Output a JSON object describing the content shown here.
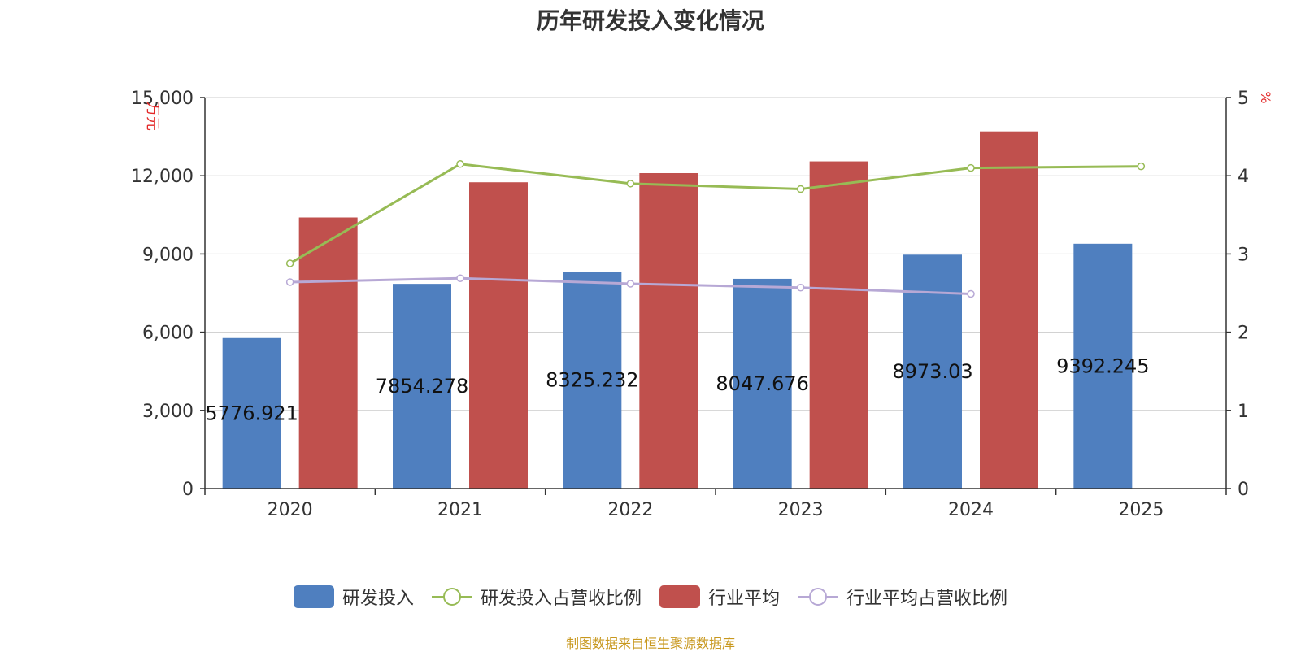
{
  "chart_data": {
    "type": "bar",
    "title": "历年研发投入变化情况",
    "source": "制图数据来自恒生聚源数据库",
    "categories": [
      "2020",
      "2021",
      "2022",
      "2023",
      "2024",
      "2025"
    ],
    "y_left": {
      "unit": "万元",
      "ylim": [
        0,
        15000
      ],
      "ticks": [
        "0",
        "3,000",
        "6,000",
        "9,000",
        "12,000",
        "15,000"
      ]
    },
    "y_right": {
      "unit": "%",
      "ylim": [
        0,
        5
      ],
      "ticks": [
        "0",
        "1",
        "2",
        "3",
        "4",
        "5"
      ]
    },
    "grid": true,
    "legend_position": "bottom",
    "series": [
      {
        "name": "研发投入",
        "type": "bar",
        "axis": "left",
        "color": "#4f7fbf",
        "values": [
          5776.921,
          7854.278,
          8325.232,
          8047.676,
          8973.03,
          9392.245
        ],
        "labels": [
          "5776.921",
          "7854.278",
          "8325.232",
          "8047.676",
          "8973.03",
          "9392.245"
        ]
      },
      {
        "name": "研发投入占营收比例",
        "type": "line",
        "axis": "right",
        "color": "#97bb55",
        "values": [
          2.88,
          4.15,
          3.9,
          3.83,
          4.1,
          4.12
        ]
      },
      {
        "name": "行业平均",
        "type": "bar",
        "axis": "left",
        "color": "#c0504d",
        "values": [
          10400,
          11750,
          12100,
          12550,
          13700,
          null
        ]
      },
      {
        "name": "行业平均占营收比例",
        "type": "line",
        "axis": "right",
        "color": "#b7a8d5",
        "values": [
          2.64,
          2.69,
          2.62,
          2.57,
          2.49,
          null
        ]
      }
    ]
  }
}
